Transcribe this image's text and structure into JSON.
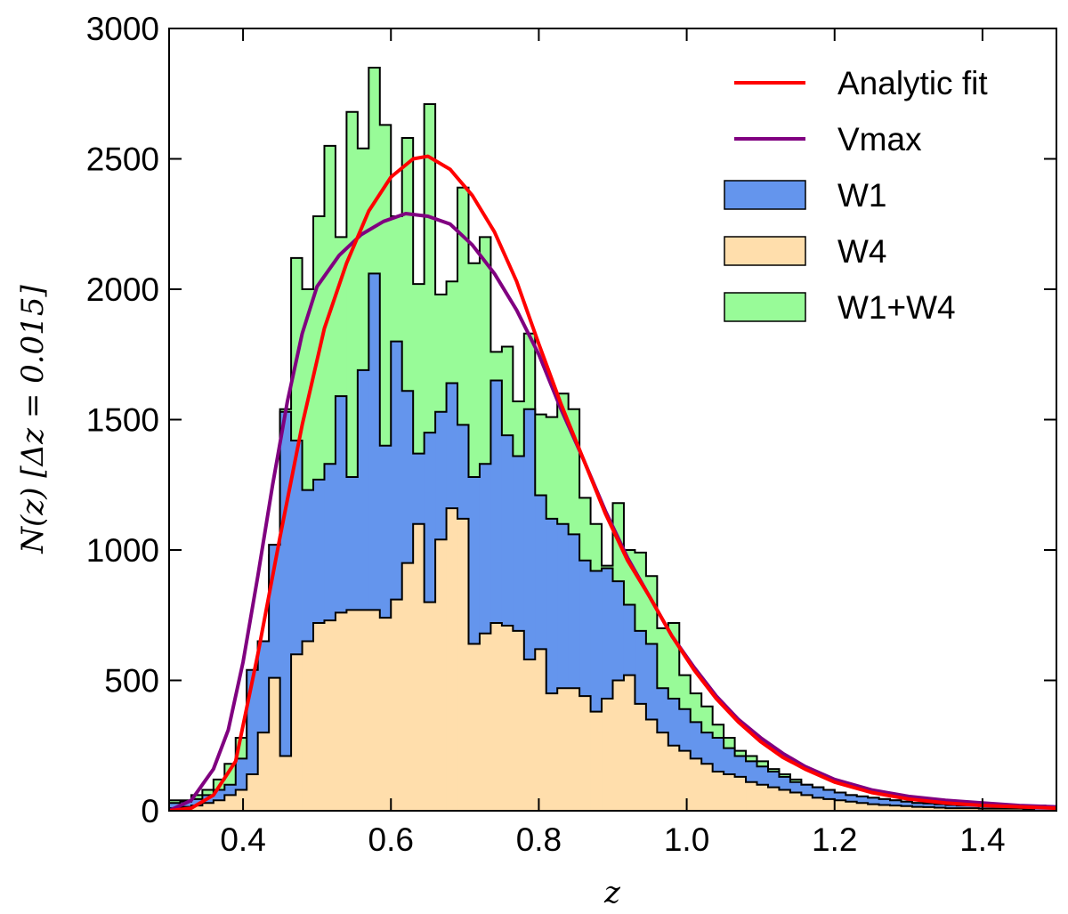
{
  "chart_data": {
    "type": "histogram",
    "title": "",
    "xlabel": "z",
    "ylabel": "N(z)  [Δz = 0.015]",
    "xlim": [
      0.3,
      1.5
    ],
    "ylim": [
      0,
      3000
    ],
    "xticks": [
      "0.4",
      "0.6",
      "0.8",
      "1.0",
      "1.2",
      "1.4"
    ],
    "yticks": [
      "0",
      "500",
      "1000",
      "1500",
      "2000",
      "2500",
      "3000"
    ],
    "legend_position": "top-right",
    "bin_width": 0.015,
    "bin_start": 0.3,
    "colors": {
      "W1+W4": "#98fb98",
      "W1": "#6495ed",
      "W4": "#ffdeac",
      "analytic": "#ff0000",
      "vmax": "#800080"
    },
    "series": [
      {
        "name": "W1+W4",
        "kind": "hist",
        "values": [
          40,
          40,
          60,
          80,
          120,
          180,
          280,
          520,
          650,
          980,
          1540,
          2120,
          2000,
          2280,
          2550,
          2200,
          2680,
          2540,
          2850,
          2630,
          2280,
          2580,
          2020,
          2710,
          1980,
          2030,
          2390,
          2100,
          2200,
          1760,
          1780,
          1570,
          1830,
          1520,
          1510,
          1600,
          1540,
          1200,
          1100,
          940,
          1180,
          1000,
          990,
          900,
          700,
          720,
          520,
          450,
          400,
          330,
          280,
          230,
          210,
          190,
          160,
          140,
          120,
          100,
          90,
          80,
          70,
          60,
          55,
          50,
          45,
          40,
          35,
          30,
          30,
          25,
          25,
          20,
          20,
          20,
          20,
          20,
          20,
          20,
          20,
          15
        ]
      },
      {
        "name": "W1",
        "kind": "hist",
        "values": [
          30,
          35,
          45,
          60,
          80,
          100,
          200,
          540,
          650,
          1020,
          1530,
          1420,
          1230,
          1270,
          1330,
          1590,
          1280,
          1690,
          2060,
          1400,
          1800,
          1610,
          1370,
          1450,
          1530,
          1640,
          1480,
          1280,
          1330,
          1650,
          1440,
          1360,
          1540,
          1210,
          1120,
          1100,
          1060,
          960,
          920,
          930,
          880,
          790,
          690,
          640,
          470,
          430,
          390,
          340,
          300,
          280,
          240,
          210,
          190,
          170,
          150,
          130,
          110,
          100,
          90,
          80,
          70,
          60,
          55,
          50,
          45,
          40,
          35,
          30,
          28,
          25,
          22,
          20,
          20,
          18,
          18,
          16,
          15,
          15,
          14,
          12
        ]
      },
      {
        "name": "W4",
        "kind": "hist",
        "values": [
          10,
          15,
          20,
          30,
          40,
          60,
          80,
          140,
          300,
          510,
          210,
          600,
          650,
          720,
          730,
          760,
          770,
          770,
          770,
          740,
          810,
          950,
          1100,
          800,
          1040,
          1160,
          1120,
          640,
          680,
          720,
          710,
          690,
          580,
          620,
          450,
          470,
          470,
          440,
          380,
          430,
          500,
          520,
          410,
          350,
          300,
          250,
          230,
          200,
          180,
          150,
          140,
          130,
          110,
          100,
          90,
          80,
          70,
          60,
          50,
          45,
          40,
          35,
          30,
          25,
          22,
          20,
          18,
          15,
          14,
          12,
          10,
          10,
          10,
          8,
          8,
          8,
          8,
          6
        ]
      },
      {
        "name": "Analytic fit",
        "kind": "line",
        "x": [
          0.3,
          0.33,
          0.36,
          0.39,
          0.42,
          0.45,
          0.48,
          0.51,
          0.54,
          0.57,
          0.6,
          0.63,
          0.65,
          0.68,
          0.71,
          0.74,
          0.77,
          0.8,
          0.83,
          0.86,
          0.89,
          0.92,
          0.95,
          0.98,
          1.01,
          1.04,
          1.07,
          1.1,
          1.13,
          1.16,
          1.2,
          1.25,
          1.3,
          1.35,
          1.4,
          1.45,
          1.5
        ],
        "y": [
          0,
          10,
          60,
          190,
          600,
          1050,
          1480,
          1850,
          2100,
          2300,
          2430,
          2500,
          2510,
          2460,
          2360,
          2220,
          2030,
          1790,
          1560,
          1350,
          1140,
          960,
          820,
          670,
          540,
          430,
          340,
          265,
          205,
          160,
          110,
          70,
          45,
          30,
          20,
          15,
          10
        ]
      },
      {
        "name": "Vmax",
        "kind": "line",
        "x": [
          0.3,
          0.33,
          0.36,
          0.38,
          0.4,
          0.42,
          0.44,
          0.46,
          0.48,
          0.5,
          0.53,
          0.56,
          0.59,
          0.62,
          0.65,
          0.68,
          0.71,
          0.74,
          0.77,
          0.8,
          0.83,
          0.86,
          0.89,
          0.92,
          0.95,
          0.98,
          1.01,
          1.04,
          1.07,
          1.1,
          1.13,
          1.16,
          1.2,
          1.25,
          1.3,
          1.35,
          1.4,
          1.45,
          1.5
        ],
        "y": [
          0,
          40,
          160,
          310,
          570,
          900,
          1250,
          1570,
          1830,
          2010,
          2130,
          2210,
          2260,
          2290,
          2280,
          2250,
          2170,
          2060,
          1920,
          1750,
          1540,
          1350,
          1150,
          970,
          820,
          670,
          550,
          440,
          350,
          280,
          220,
          170,
          120,
          80,
          55,
          40,
          30,
          20,
          15
        ]
      }
    ]
  }
}
